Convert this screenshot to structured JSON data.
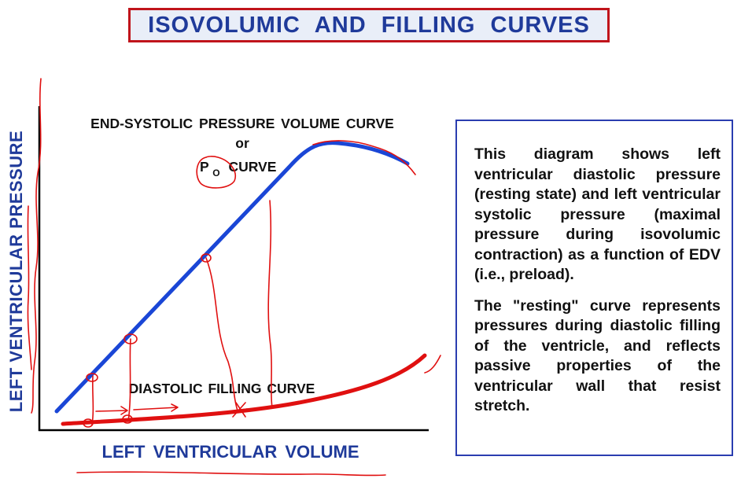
{
  "title": "ISOVOLUMIC AND FILLING CURVES",
  "diagram": {
    "y_axis_label": "LEFT VENTRICULAR PRESSURE",
    "x_axis_label": "LEFT VENTRICULAR VOLUME",
    "end_systolic_label_line1": "END-SYSTOLIC PRESSURE VOLUME CURVE",
    "end_systolic_label_line2": "or",
    "po_label_main": "P",
    "po_label_sub": "O",
    "po_label_suffix": "CURVE",
    "diastolic_label": "DIASTOLIC FILLING CURVE"
  },
  "info_box": {
    "paragraph1": "This diagram shows left ventricular diastolic pressure (resting state) and left ventricular systolic pressure (maximal pressure during isovolumic contraction) as a function of EDV (i.e., preload).",
    "paragraph2": "The \"resting\" curve represents pressures during diastolic filling of the ventricle, and reflects passive properties of the ventricular wall that resist stretch."
  },
  "colors": {
    "title_border": "#c0141b",
    "title_text": "#1f3a9a",
    "title_background": "#e9eef8",
    "end_systolic_curve": "#1a46d6",
    "diastolic_curve": "#e01010",
    "annotation_ink": "#e01010",
    "axis_label": "#1f3a9a",
    "axis_line": "#000000",
    "info_border": "#2a3db0"
  }
}
